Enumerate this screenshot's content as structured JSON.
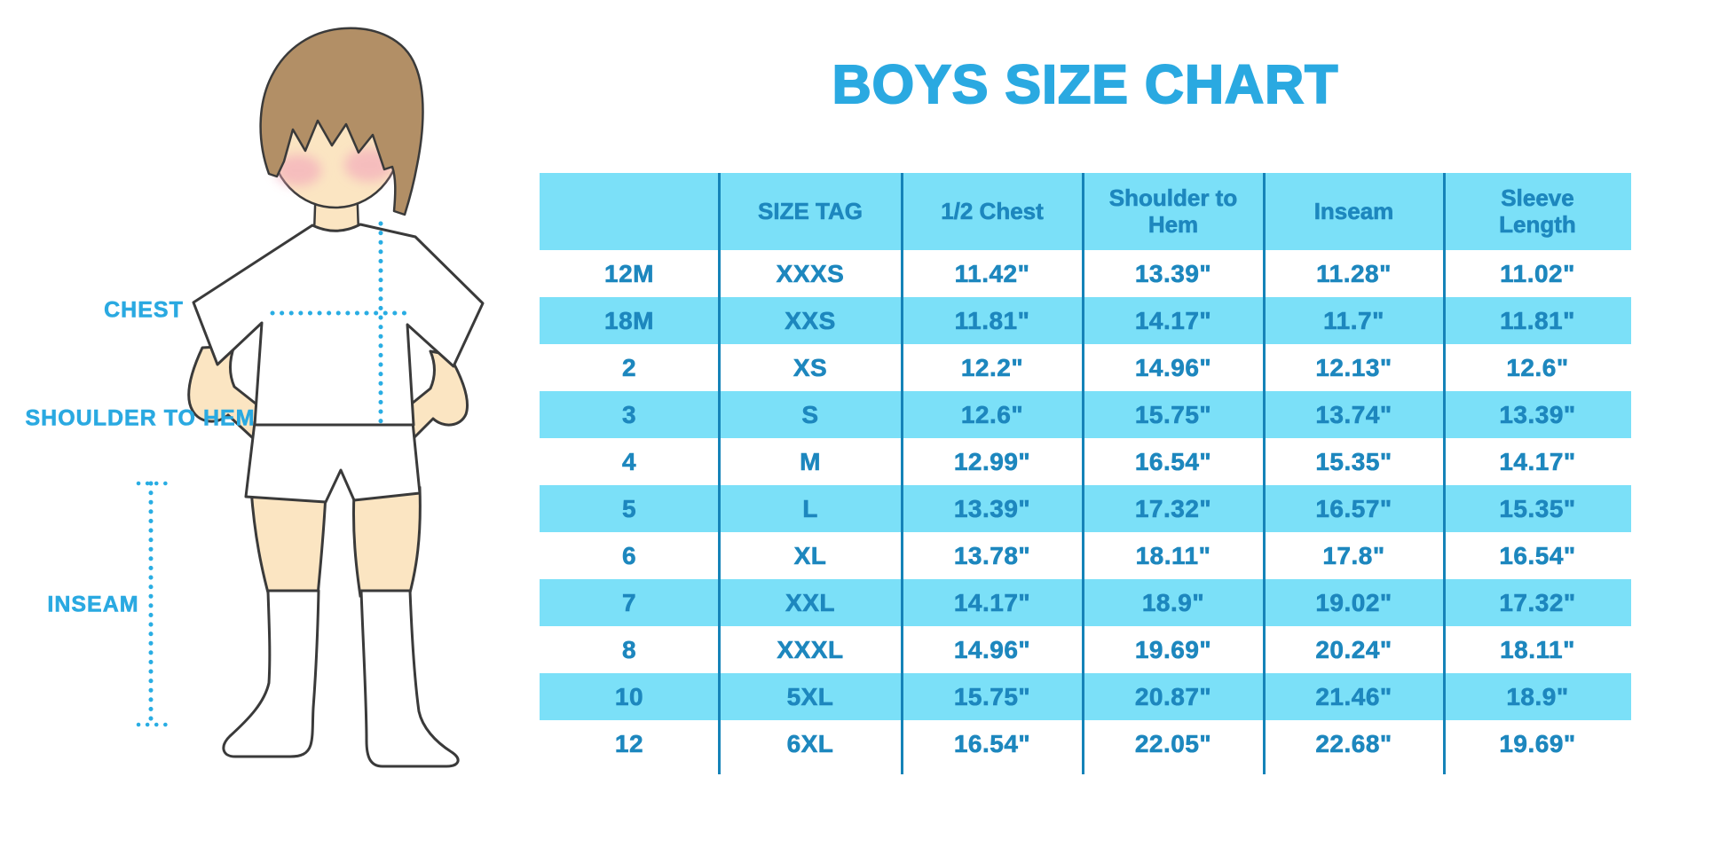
{
  "title": "BOYS SIZE CHART",
  "figure": {
    "chest_label": "CHEST",
    "shoulder_to_hem_label": "SHOULDER TO HEM",
    "inseam_label": "INSEAM"
  },
  "colors": {
    "accent_blue": "#2AA9E1",
    "table_fill": "#7BE0F8",
    "table_text": "#1D87BE",
    "divider": "#1583B8",
    "skin": "#FBE5C2",
    "hair": "#B28F66",
    "blush": "#F3A9BB",
    "outline": "#3A3A3A"
  },
  "chart_data": {
    "type": "table",
    "title": "BOYS SIZE CHART",
    "columns": [
      "",
      "SIZE TAG",
      "1/2 Chest",
      "Shoulder to Hem",
      "Inseam",
      "Sleeve Length"
    ],
    "rows": [
      [
        "12M",
        "XXXS",
        "11.42\"",
        "13.39\"",
        "11.28\"",
        "11.02\""
      ],
      [
        "18M",
        "XXS",
        "11.81\"",
        "14.17\"",
        "11.7\"",
        "11.81\""
      ],
      [
        "2",
        "XS",
        "12.2\"",
        "14.96\"",
        "12.13\"",
        "12.6\""
      ],
      [
        "3",
        "S",
        "12.6\"",
        "15.75\"",
        "13.74\"",
        "13.39\""
      ],
      [
        "4",
        "M",
        "12.99\"",
        "16.54\"",
        "15.35\"",
        "14.17\""
      ],
      [
        "5",
        "L",
        "13.39\"",
        "17.32\"",
        "16.57\"",
        "15.35\""
      ],
      [
        "6",
        "XL",
        "13.78\"",
        "18.11\"",
        "17.8\"",
        "16.54\""
      ],
      [
        "7",
        "XXL",
        "14.17\"",
        "18.9\"",
        "19.02\"",
        "17.32\""
      ],
      [
        "8",
        "XXXL",
        "14.96\"",
        "19.69\"",
        "20.24\"",
        "18.11\""
      ],
      [
        "10",
        "5XL",
        "15.75\"",
        "20.87\"",
        "21.46\"",
        "18.9\""
      ],
      [
        "12",
        "6XL",
        "16.54\"",
        "22.05\"",
        "22.68\"",
        "19.69\""
      ]
    ],
    "layout": {
      "striped": true,
      "stripe_start": "white",
      "stripe_color": "#7BE0F8",
      "grid": "vertical-dividers-only",
      "header_fill": "#7BE0F8"
    },
    "measurement_unit": "inches"
  }
}
